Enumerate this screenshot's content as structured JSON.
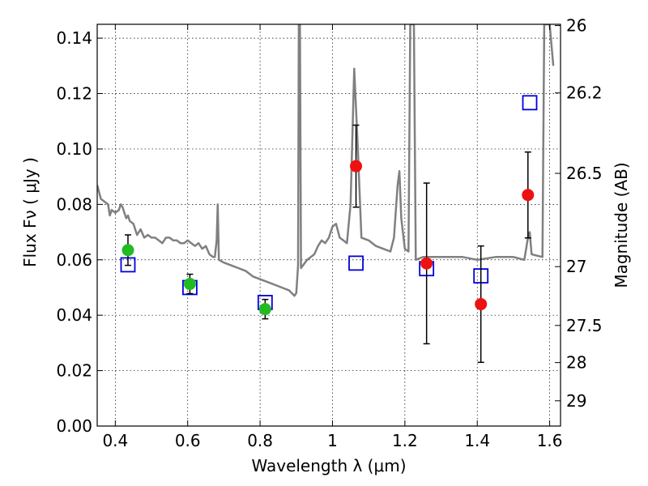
{
  "chart_data": {
    "type": "scatter",
    "xlabel": "Wavelength  λ (μm)",
    "ylabel": "Flux  Fν  ( μJy )",
    "ylabel_right": "Magnitude (AB)",
    "xlim": [
      0.35,
      1.63
    ],
    "ylim": [
      0.0,
      0.145
    ],
    "grid": true,
    "x_ticks": [
      {
        "value": 0.4,
        "label": "0.4"
      },
      {
        "value": 0.6,
        "label": "0.6"
      },
      {
        "value": 0.8,
        "label": "0.8"
      },
      {
        "value": 1.0,
        "label": "1"
      },
      {
        "value": 1.2,
        "label": "1.2"
      },
      {
        "value": 1.4,
        "label": "1.4"
      },
      {
        "value": 1.6,
        "label": "1.6"
      }
    ],
    "y_ticks": [
      {
        "value": 0.0,
        "label": "0.00"
      },
      {
        "value": 0.02,
        "label": "0.02"
      },
      {
        "value": 0.04,
        "label": "0.04"
      },
      {
        "value": 0.06,
        "label": "0.06"
      },
      {
        "value": 0.08,
        "label": "0.08"
      },
      {
        "value": 0.1,
        "label": "0.10"
      },
      {
        "value": 0.12,
        "label": "0.12"
      },
      {
        "value": 0.14,
        "label": "0.14"
      }
    ],
    "right_ticks": [
      {
        "value": 26,
        "label": "26"
      },
      {
        "value": 26.2,
        "label": "26.2"
      },
      {
        "value": 26.5,
        "label": "26.5"
      },
      {
        "value": 27,
        "label": "27"
      },
      {
        "value": 27.5,
        "label": "27.5"
      },
      {
        "value": 28,
        "label": "28"
      },
      {
        "value": 29,
        "label": "29"
      }
    ],
    "colors": {
      "model": "#808080",
      "green_points": "#22bb22",
      "red_points": "#ee1111",
      "model_boxes": "#0000dd",
      "error_bars": "#000000"
    },
    "model_spectrum": [
      [
        0.35,
        0.087
      ],
      [
        0.36,
        0.082
      ],
      [
        0.37,
        0.081
      ],
      [
        0.38,
        0.08
      ],
      [
        0.385,
        0.076
      ],
      [
        0.39,
        0.078
      ],
      [
        0.4,
        0.077
      ],
      [
        0.41,
        0.078
      ],
      [
        0.415,
        0.08
      ],
      [
        0.42,
        0.079
      ],
      [
        0.425,
        0.077
      ],
      [
        0.43,
        0.075
      ],
      [
        0.435,
        0.076
      ],
      [
        0.44,
        0.074
      ],
      [
        0.45,
        0.073
      ],
      [
        0.46,
        0.069
      ],
      [
        0.47,
        0.071
      ],
      [
        0.48,
        0.068
      ],
      [
        0.49,
        0.069
      ],
      [
        0.5,
        0.068
      ],
      [
        0.51,
        0.068
      ],
      [
        0.52,
        0.067
      ],
      [
        0.53,
        0.066
      ],
      [
        0.54,
        0.068
      ],
      [
        0.55,
        0.068
      ],
      [
        0.56,
        0.067
      ],
      [
        0.57,
        0.067
      ],
      [
        0.58,
        0.066
      ],
      [
        0.59,
        0.066
      ],
      [
        0.6,
        0.067
      ],
      [
        0.61,
        0.066
      ],
      [
        0.62,
        0.065
      ],
      [
        0.63,
        0.066
      ],
      [
        0.64,
        0.064
      ],
      [
        0.65,
        0.065
      ],
      [
        0.66,
        0.062
      ],
      [
        0.67,
        0.061
      ],
      [
        0.675,
        0.061
      ],
      [
        0.68,
        0.067
      ],
      [
        0.683,
        0.08
      ],
      [
        0.686,
        0.06
      ],
      [
        0.7,
        0.059
      ],
      [
        0.72,
        0.058
      ],
      [
        0.74,
        0.057
      ],
      [
        0.76,
        0.056
      ],
      [
        0.78,
        0.054
      ],
      [
        0.8,
        0.053
      ],
      [
        0.82,
        0.052
      ],
      [
        0.84,
        0.051
      ],
      [
        0.86,
        0.05
      ],
      [
        0.88,
        0.049
      ],
      [
        0.895,
        0.047
      ],
      [
        0.9,
        0.048
      ],
      [
        0.905,
        0.058
      ],
      [
        0.907,
        0.145
      ],
      [
        0.91,
        0.145
      ],
      [
        0.913,
        0.057
      ],
      [
        0.93,
        0.06
      ],
      [
        0.95,
        0.062
      ],
      [
        0.96,
        0.065
      ],
      [
        0.97,
        0.067
      ],
      [
        0.98,
        0.066
      ],
      [
        0.99,
        0.068
      ],
      [
        1.0,
        0.072
      ],
      [
        1.01,
        0.073
      ],
      [
        1.02,
        0.068
      ],
      [
        1.03,
        0.067
      ],
      [
        1.04,
        0.066
      ],
      [
        1.05,
        0.08
      ],
      [
        1.06,
        0.129
      ],
      [
        1.07,
        0.1
      ],
      [
        1.08,
        0.068
      ],
      [
        1.1,
        0.067
      ],
      [
        1.12,
        0.065
      ],
      [
        1.14,
        0.064
      ],
      [
        1.16,
        0.063
      ],
      [
        1.17,
        0.068
      ],
      [
        1.18,
        0.087
      ],
      [
        1.185,
        0.092
      ],
      [
        1.19,
        0.075
      ],
      [
        1.2,
        0.064
      ],
      [
        1.21,
        0.063
      ],
      [
        1.215,
        0.145
      ],
      [
        1.225,
        0.145
      ],
      [
        1.23,
        0.06
      ],
      [
        1.25,
        0.061
      ],
      [
        1.27,
        0.061
      ],
      [
        1.3,
        0.061
      ],
      [
        1.33,
        0.061
      ],
      [
        1.36,
        0.061
      ],
      [
        1.4,
        0.06
      ],
      [
        1.45,
        0.061
      ],
      [
        1.5,
        0.061
      ],
      [
        1.53,
        0.06
      ],
      [
        1.54,
        0.068
      ],
      [
        1.545,
        0.07
      ],
      [
        1.55,
        0.062
      ],
      [
        1.58,
        0.061
      ],
      [
        1.585,
        0.145
      ],
      [
        1.6,
        0.145
      ],
      [
        1.61,
        0.13
      ]
    ],
    "photometry_green": [
      {
        "x": 0.435,
        "y": 0.0635,
        "err": 0.0055
      },
      {
        "x": 0.606,
        "y": 0.0513,
        "err": 0.0035
      },
      {
        "x": 0.814,
        "y": 0.0422,
        "err": 0.0035
      }
    ],
    "photometry_red": [
      {
        "x": 1.065,
        "y": 0.0938,
        "err": 0.0148
      },
      {
        "x": 1.26,
        "y": 0.0587,
        "err": 0.029
      },
      {
        "x": 1.41,
        "y": 0.044,
        "err": 0.021
      },
      {
        "x": 1.54,
        "y": 0.0834,
        "err": 0.0155
      }
    ],
    "model_photometry": [
      {
        "x": 0.435,
        "y": 0.0582
      },
      {
        "x": 0.606,
        "y": 0.05
      },
      {
        "x": 0.814,
        "y": 0.0446
      },
      {
        "x": 1.065,
        "y": 0.0588
      },
      {
        "x": 1.26,
        "y": 0.0568
      },
      {
        "x": 1.41,
        "y": 0.0542
      },
      {
        "x": 1.545,
        "y": 0.1167
      }
    ]
  }
}
